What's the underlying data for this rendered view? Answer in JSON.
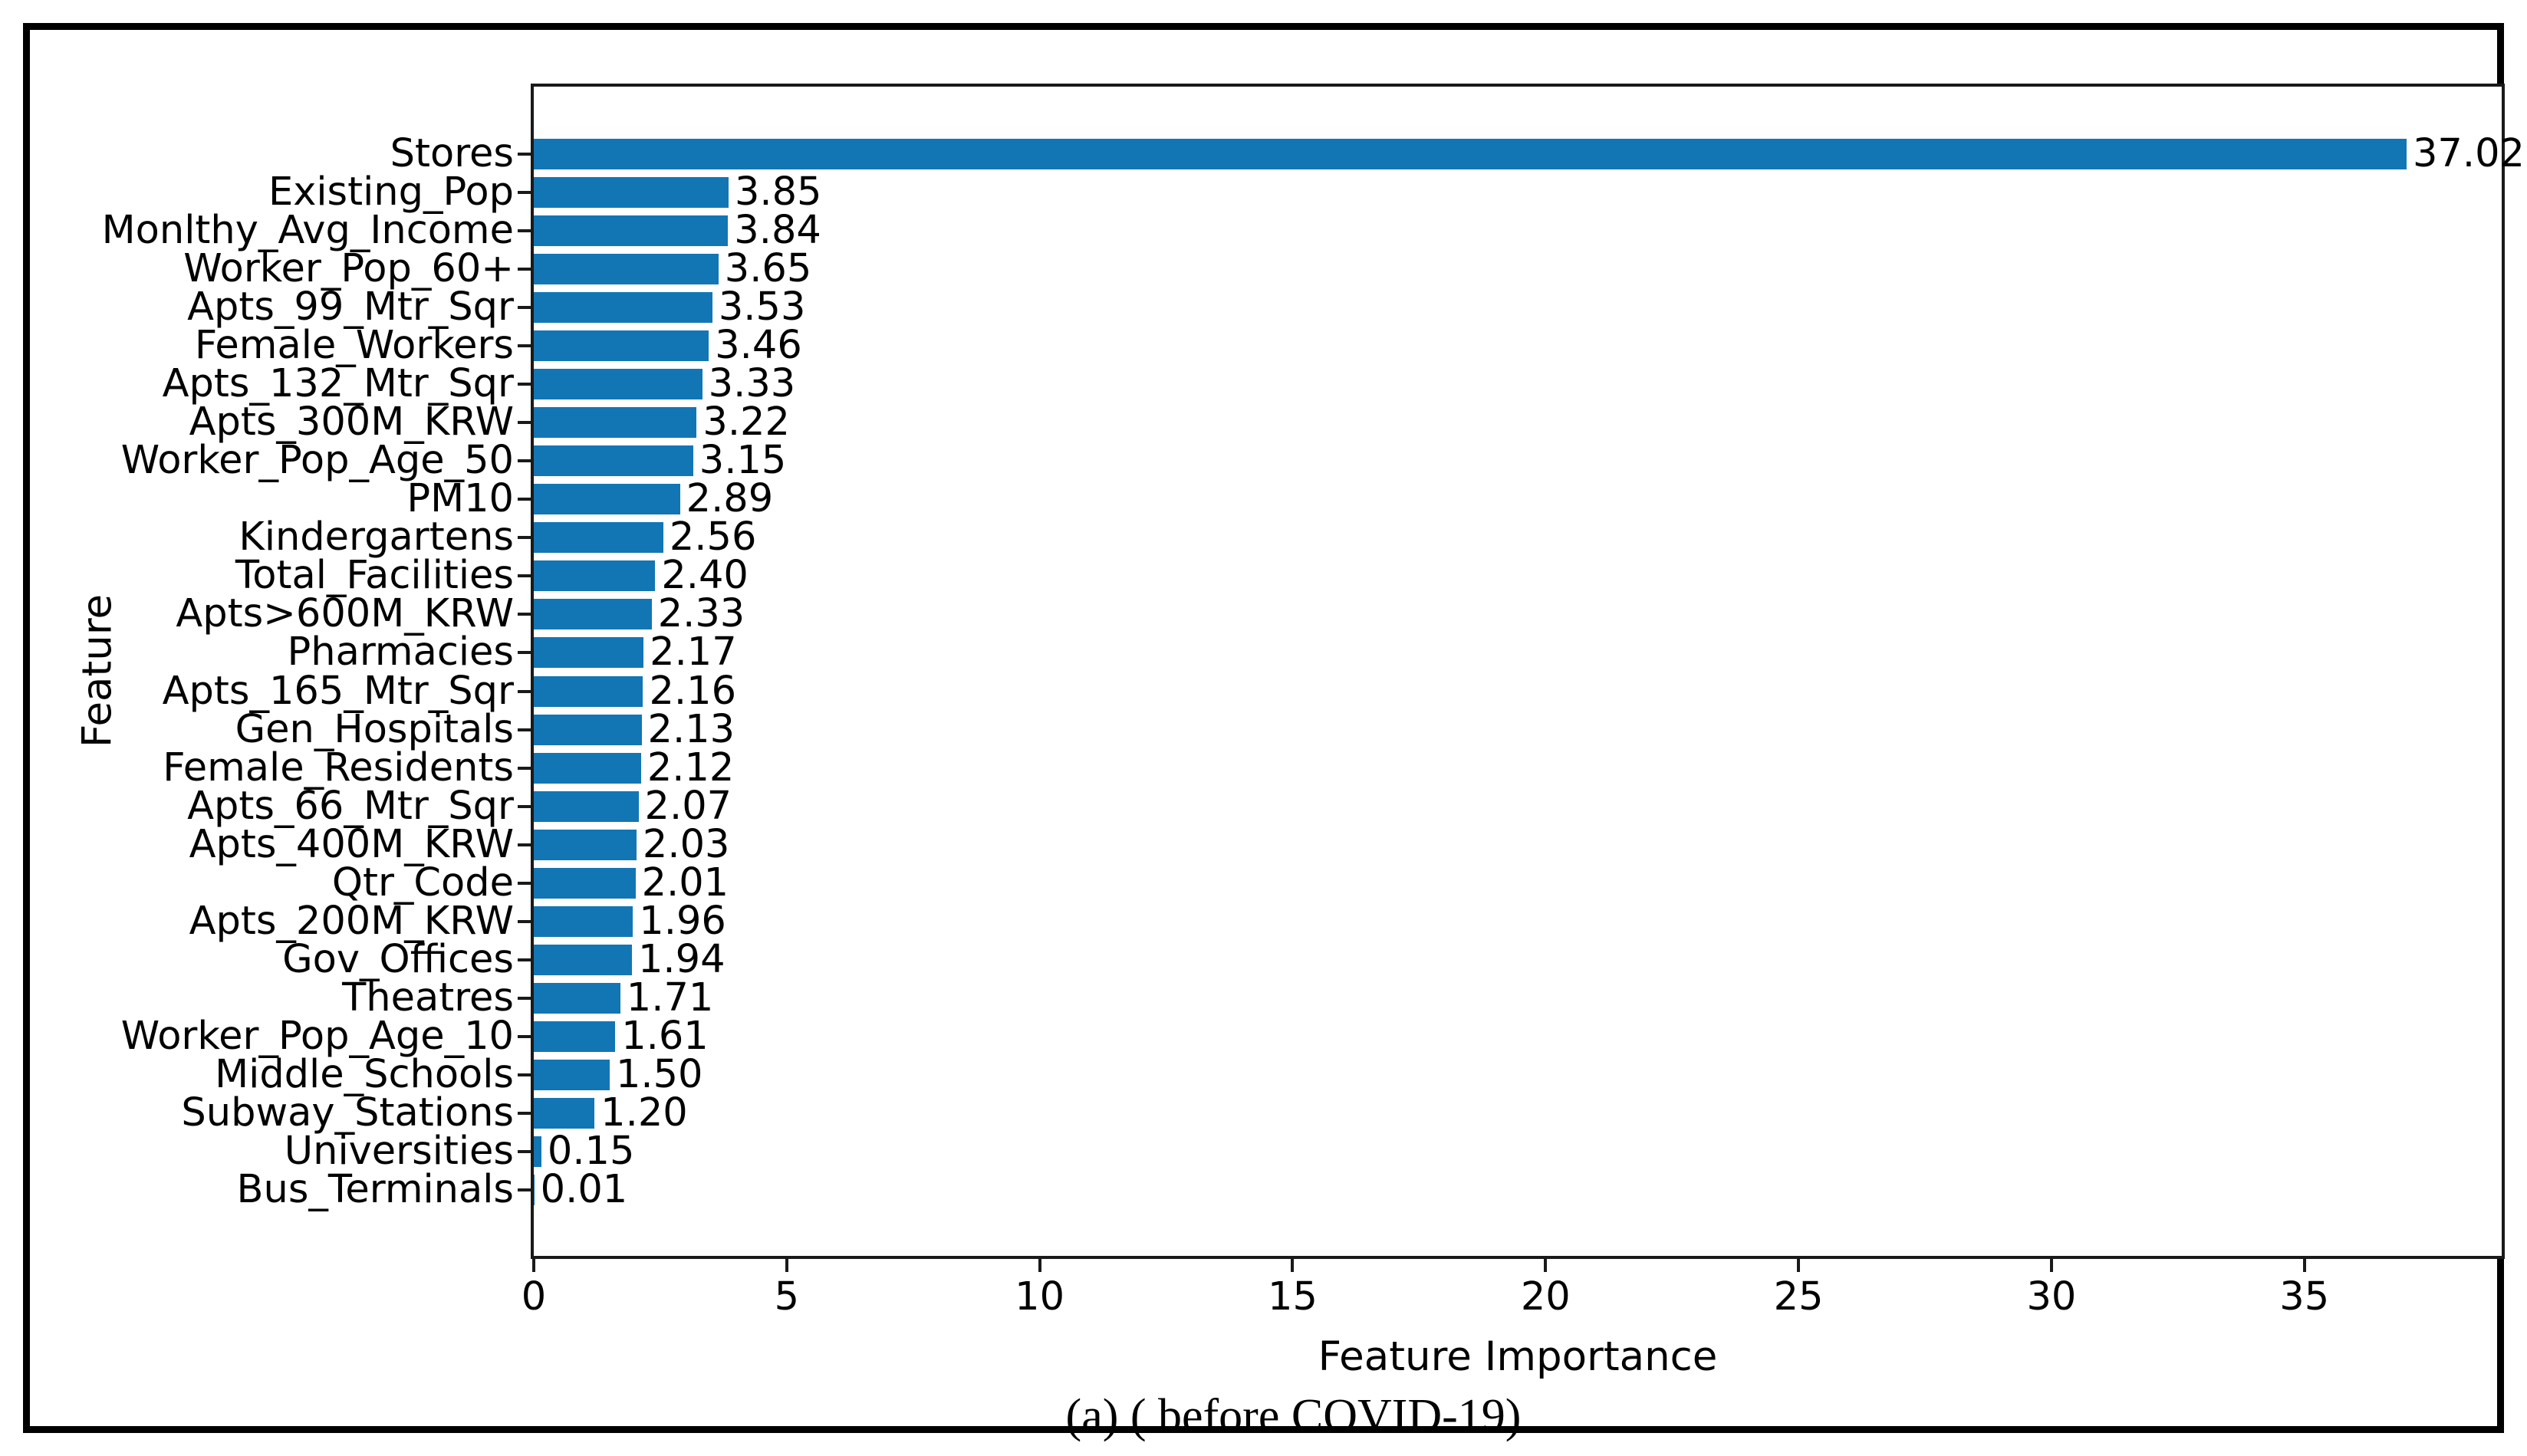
{
  "figure": {
    "caption": "(a) ( before COVID-19)"
  },
  "chart_data": {
    "type": "bar",
    "orientation": "horizontal",
    "title": "",
    "xlabel": "Feature Importance",
    "ylabel": "Feature",
    "categories": [
      "Stores",
      "Existing_Pop",
      "Monlthy_Avg_Income",
      "Worker_Pop_60+",
      "Apts_99_Mtr_Sqr",
      "Female_Workers",
      "Apts_132_Mtr_Sqr",
      "Apts_300M_KRW",
      "Worker_Pop_Age_50",
      "PM10",
      "Kindergartens",
      "Total_Facilities",
      "Apts>600M_KRW",
      "Pharmacies",
      "Apts_165_Mtr_Sqr",
      "Gen_Hospitals",
      "Female_Residents",
      "Apts_66_Mtr_Sqr",
      "Apts_400M_KRW",
      "Qtr_Code",
      "Apts_200M_KRW",
      "Gov_Offices",
      "Theatres",
      "Worker_Pop_Age_10",
      "Middle_Schools",
      "Subway_Stations",
      "Universities",
      "Bus_Terminals"
    ],
    "values": [
      37.02,
      3.85,
      3.84,
      3.65,
      3.53,
      3.46,
      3.33,
      3.22,
      3.15,
      2.89,
      2.56,
      2.4,
      2.33,
      2.17,
      2.16,
      2.13,
      2.12,
      2.07,
      2.03,
      2.01,
      1.96,
      1.94,
      1.71,
      1.61,
      1.5,
      1.2,
      0.15,
      0.01
    ],
    "value_labels": [
      "37.02",
      "3.85",
      "3.84",
      "3.65",
      "3.53",
      "3.46",
      "3.33",
      "3.22",
      "3.15",
      "2.89",
      "2.56",
      "2.40",
      "2.33",
      "2.17",
      "2.16",
      "2.13",
      "2.12",
      "2.07",
      "2.03",
      "2.01",
      "1.96",
      "1.94",
      "1.71",
      "1.61",
      "1.50",
      "1.20",
      "0.15",
      "0.01"
    ],
    "x_ticks": [
      0,
      5,
      10,
      15,
      20,
      25,
      30,
      35
    ],
    "xlim": [
      0,
      38.9
    ],
    "grid": false,
    "legend": "none",
    "bar_color": "#1276b5"
  }
}
